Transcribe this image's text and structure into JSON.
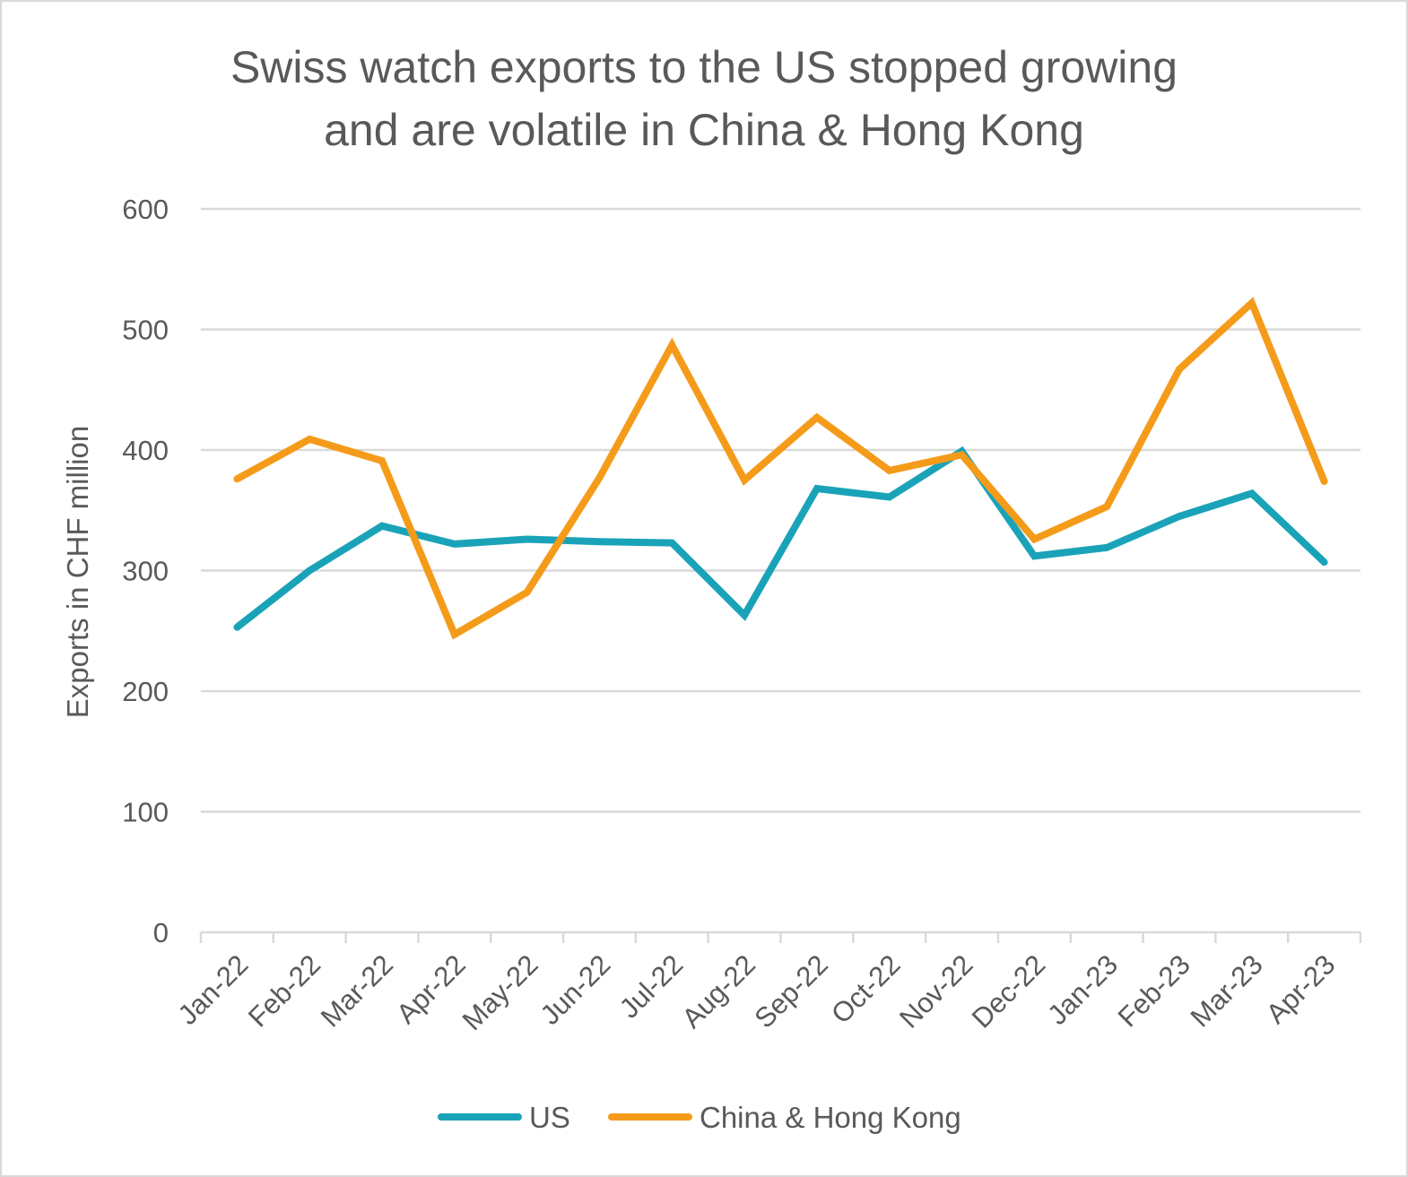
{
  "chart_data": {
    "type": "line",
    "title_lines": [
      "Swiss watch exports to the US stopped growing",
      "and are volatile in China & Hong Kong"
    ],
    "xlabel": "",
    "ylabel": "Exports in CHF million",
    "ylim": [
      0,
      600
    ],
    "yticks": [
      "0",
      "100",
      "200",
      "300",
      "400",
      "500",
      "600"
    ],
    "grid": true,
    "legend_position": "bottom",
    "categories": [
      "Jan-22",
      "Feb-22",
      "Mar-22",
      "Apr-22",
      "May-22",
      "Jun-22",
      "Jul-22",
      "Aug-22",
      "Sep-22",
      "Oct-22",
      "Nov-22",
      "Dec-22",
      "Jan-23",
      "Feb-23",
      "Mar-23",
      "Apr-23"
    ],
    "series": [
      {
        "name": "US",
        "color": "#1aa3b8",
        "values": [
          253,
          300,
          337,
          322,
          326,
          324,
          323,
          263,
          368,
          361,
          399,
          312,
          319,
          345,
          364,
          307
        ]
      },
      {
        "name": "China & Hong Kong",
        "color": "#f59b1a",
        "values": [
          376,
          409,
          391,
          247,
          282,
          377,
          487,
          375,
          427,
          383,
          396,
          326,
          353,
          467,
          522,
          374
        ]
      }
    ]
  }
}
